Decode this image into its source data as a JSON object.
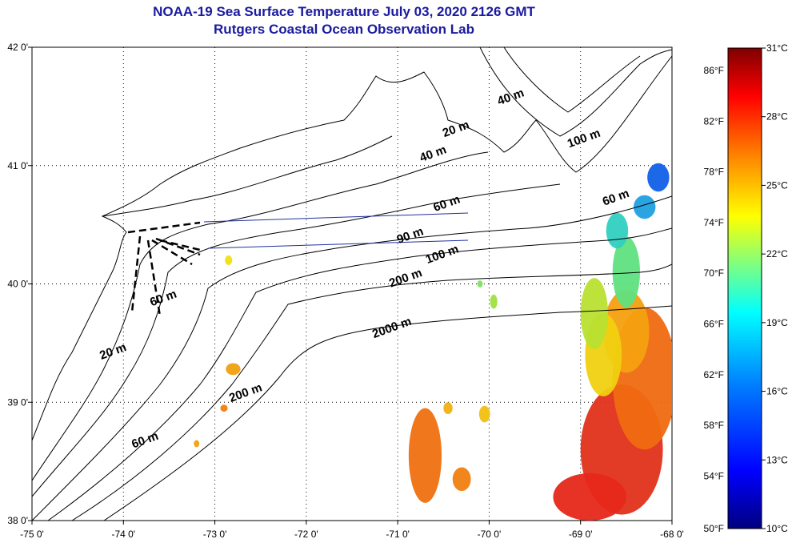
{
  "title": {
    "line1": "NOAA-19 Sea Surface Temperature July 03, 2020 2126 GMT",
    "line2": "Rutgers Coastal Ocean Observation Lab"
  },
  "map": {
    "lon_ticks": [
      "-75 0'",
      "-74 0'",
      "-73 0'",
      "-72 0'",
      "-71 0'",
      "-70 0'",
      "-69 0'",
      "-68 0'"
    ],
    "lat_ticks": [
      "42 0'",
      "41 0'",
      "40 0'",
      "39 0'",
      "38 0'"
    ],
    "lon_range": [
      -75,
      -68
    ],
    "lat_range": [
      38,
      42
    ],
    "contour_labels": [
      {
        "text": "20 m",
        "lon": -70.35,
        "lat": 41.28
      },
      {
        "text": "40 m",
        "lon": -70.6,
        "lat": 41.07
      },
      {
        "text": "40 m",
        "lon": -69.75,
        "lat": 41.55
      },
      {
        "text": "100 m",
        "lon": -68.95,
        "lat": 41.2
      },
      {
        "text": "60 m",
        "lon": -70.45,
        "lat": 40.65
      },
      {
        "text": "60 m",
        "lon": -68.6,
        "lat": 40.7
      },
      {
        "text": "90 m",
        "lon": -70.85,
        "lat": 40.38
      },
      {
        "text": "100 m",
        "lon": -70.5,
        "lat": 40.22
      },
      {
        "text": "200 m",
        "lon": -70.9,
        "lat": 40.02
      },
      {
        "text": "60 m",
        "lon": -73.55,
        "lat": 39.85
      },
      {
        "text": "2000 m",
        "lon": -71.05,
        "lat": 39.6
      },
      {
        "text": "20 m",
        "lon": -74.1,
        "lat": 39.4
      },
      {
        "text": "200 m",
        "lon": -72.65,
        "lat": 39.05
      },
      {
        "text": "60 m",
        "lon": -73.75,
        "lat": 38.65
      }
    ],
    "sst_patches": [
      {
        "lon": -68.55,
        "lat": 38.6,
        "rx": 0.45,
        "ry": 0.55,
        "color": "#e0301a"
      },
      {
        "lon": -68.3,
        "lat": 39.2,
        "rx": 0.35,
        "ry": 0.6,
        "color": "#f06a10"
      },
      {
        "lon": -68.9,
        "lat": 38.2,
        "rx": 0.4,
        "ry": 0.2,
        "color": "#e6281a"
      },
      {
        "lon": -68.5,
        "lat": 39.6,
        "rx": 0.25,
        "ry": 0.35,
        "color": "#f4a010"
      },
      {
        "lon": -68.75,
        "lat": 39.4,
        "rx": 0.2,
        "ry": 0.35,
        "color": "#f0d010"
      },
      {
        "lon": -68.85,
        "lat": 39.75,
        "rx": 0.15,
        "ry": 0.3,
        "color": "#b8e030"
      },
      {
        "lon": -68.5,
        "lat": 40.1,
        "rx": 0.15,
        "ry": 0.3,
        "color": "#60e080"
      },
      {
        "lon": -68.6,
        "lat": 40.45,
        "rx": 0.12,
        "ry": 0.15,
        "color": "#30d0c0"
      },
      {
        "lon": -68.15,
        "lat": 40.9,
        "rx": 0.12,
        "ry": 0.12,
        "color": "#1060e8"
      },
      {
        "lon": -68.3,
        "lat": 40.65,
        "rx": 0.12,
        "ry": 0.1,
        "color": "#20a0e0"
      },
      {
        "lon": -70.7,
        "lat": 38.55,
        "rx": 0.18,
        "ry": 0.4,
        "color": "#f07010"
      },
      {
        "lon": -70.3,
        "lat": 38.35,
        "rx": 0.1,
        "ry": 0.1,
        "color": "#f08010"
      },
      {
        "lon": -70.05,
        "lat": 38.9,
        "rx": 0.06,
        "ry": 0.07,
        "color": "#f0c010"
      },
      {
        "lon": -70.45,
        "lat": 38.95,
        "rx": 0.05,
        "ry": 0.05,
        "color": "#f0b010"
      },
      {
        "lon": -72.8,
        "lat": 39.28,
        "rx": 0.08,
        "ry": 0.05,
        "color": "#f0a010"
      },
      {
        "lon": -72.9,
        "lat": 38.95,
        "rx": 0.04,
        "ry": 0.03,
        "color": "#f08010"
      },
      {
        "lon": -73.2,
        "lat": 38.65,
        "rx": 0.03,
        "ry": 0.03,
        "color": "#f0a010"
      },
      {
        "lon": -72.85,
        "lat": 40.2,
        "rx": 0.04,
        "ry": 0.04,
        "color": "#f0e010"
      },
      {
        "lon": -69.95,
        "lat": 39.85,
        "rx": 0.04,
        "ry": 0.06,
        "color": "#a0e040"
      },
      {
        "lon": -70.1,
        "lat": 40.0,
        "rx": 0.03,
        "ry": 0.03,
        "color": "#80e060"
      }
    ]
  },
  "colorbar": {
    "fahrenheit_ticks": [
      "86°F",
      "82°F",
      "78°F",
      "74°F",
      "70°F",
      "66°F",
      "62°F",
      "58°F",
      "54°F",
      "50°F"
    ],
    "celsius_ticks": [
      "31°C",
      "28°C",
      "25°C",
      "22°C",
      "19°C",
      "16°C",
      "13°C",
      "10°C"
    ],
    "range_c": [
      10,
      31
    ],
    "colors": [
      "#00007f",
      "#0000ff",
      "#007fff",
      "#00ffff",
      "#7fff7f",
      "#ffff00",
      "#ff7f00",
      "#ff0000",
      "#7f0000"
    ]
  }
}
